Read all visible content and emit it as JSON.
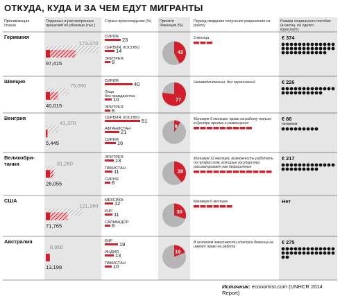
{
  "title": "ОТКУДА, КУДА И ЗА ЧЕМ ЕДУТ МИГРАНТЫ",
  "headers": {
    "country": "Принимающая страна",
    "applications": "Поданных и рассмотренных прошений об убежище (тыс.)",
    "origin": "Страна происхождения (%)",
    "accepted": "Принято беженцев (%)",
    "wait": "Период ожидания получения разрешения на работу",
    "benefit": "Размер социального пособия (в месяц, на одного взрослого)"
  },
  "source": {
    "label": "Источник:",
    "text": "economist.com (UNHCR 2014 Report)"
  },
  "chart_data": {
    "type": "table",
    "accent_color": "#d21f2b",
    "grey_color": "#b5b5b5",
    "rows": [
      {
        "country": "Германия",
        "submitted": 173070,
        "submitted_label": "173,070",
        "considered": 97415,
        "considered_label": "97,415",
        "origins": [
          {
            "name": "СИРИЯ",
            "pct": 23
          },
          {
            "name": "СЕРБИЯ, КОСОВО",
            "pct": 14
          },
          {
            "name": "ЭРИТРЕЯ",
            "pct": 8
          }
        ],
        "accepted_pct": 42,
        "wait_text": "3 месяца",
        "wait_months": 3,
        "benefit": "€ 374",
        "benefit_dots": 37
      },
      {
        "country": "Швеция",
        "submitted": 75090,
        "submitted_label": "75,090",
        "considered": 40015,
        "considered_label": "40,015",
        "origins": [
          {
            "name": "СИРИЯ",
            "pct": 40
          },
          {
            "name": "Лица без гражданства",
            "pct": 10
          },
          {
            "name": "ЭРИТРЕЯ",
            "pct": 8
          }
        ],
        "accepted_pct": 77,
        "wait_text": "Незамедлительно, без ограничений",
        "wait_months": 0,
        "benefit": "€ 226",
        "benefit_dots": 23
      },
      {
        "country": "Венгрия",
        "submitted": 41370,
        "submitted_label": "41,370",
        "considered": 5445,
        "considered_label": "5,445",
        "origins": [
          {
            "name": "СЕРБИЯ, КОСОВО",
            "pct": 51
          },
          {
            "name": "АФГАНИСТАН",
            "pct": 21
          },
          {
            "name": "СИРИЯ",
            "pct": 16
          }
        ],
        "accepted_pct": 9,
        "wait_text": "Минимум 9 месяцев, право на работу только в Центре приема и размещения",
        "wait_months": 9,
        "benefit": "€ 86",
        "benefit_note": "питанием",
        "benefit_dots": 9
      },
      {
        "country": "Великобритания",
        "country_lines": [
          "Великобри-",
          "тания"
        ],
        "submitted": 31260,
        "submitted_label": "31,260",
        "considered": 26055,
        "considered_label": "26,055",
        "origins": [
          {
            "name": "ЭРИТРЕЯ",
            "pct": 13
          },
          {
            "name": "ПАКИСТАН",
            "pct": 11
          },
          {
            "name": "СИРИЯ",
            "pct": 8
          }
        ],
        "accepted_pct": 39,
        "wait_text": "Минимум 12 месяцев, возможность работать по профессиям, которые государство рассматривает как дефицитные",
        "wait_months": 12,
        "benefit": "€ 217",
        "benefit_dots": 22
      },
      {
        "country": "США",
        "submitted": 121160,
        "submitted_label": "121,160",
        "considered": 71765,
        "considered_label": "71,765",
        "origins": [
          {
            "name": "МЕКСИКА",
            "pct": 12
          },
          {
            "name": "КНР",
            "pct": 11
          },
          {
            "name": "САЛЬВАДОР",
            "pct": 8
          }
        ],
        "accepted_pct": 30,
        "wait_text": "Минимум 6 месяцев",
        "wait_months": 6,
        "benefit": "Нет",
        "benefit_dots": 0
      },
      {
        "country": "Австралия",
        "submitted": 8960,
        "submitted_label": "8,960",
        "considered": 13198,
        "considered_label": "13,198",
        "origins": [
          {
            "name": "КНР",
            "pct": 19
          },
          {
            "name": "ИНДИЯ",
            "pct": 13
          },
          {
            "name": "ПАКИСТАН",
            "pct": 10
          }
        ],
        "accepted_pct": 19,
        "wait_text": "В основном зависимости статуса беженца не имеют право на работу",
        "wait_months": 0,
        "benefit": "€ 275",
        "benefit_dots": 28
      }
    ]
  }
}
